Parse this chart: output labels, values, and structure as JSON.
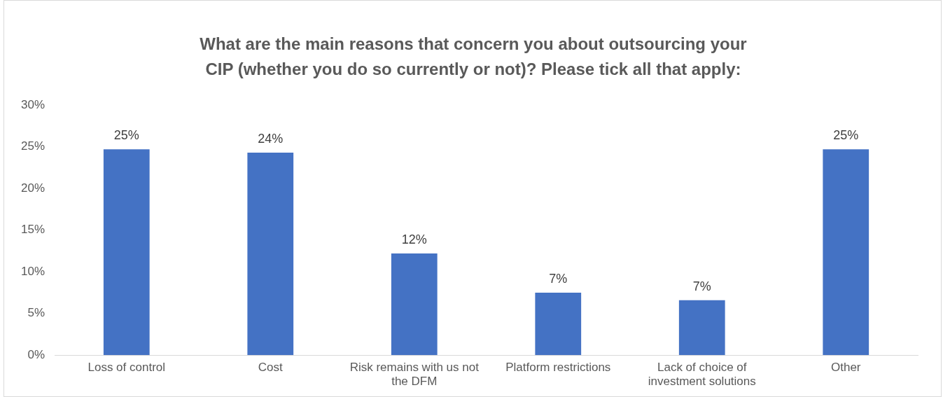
{
  "chart_data": {
    "type": "bar",
    "title": "What are the main reasons that concern you about outsourcing your CIP (whether you do so currently or not)? Please tick all that apply:",
    "categories": [
      "Loss of control",
      "Cost",
      "Risk remains with us not the DFM",
      "Platform restrictions",
      "Lack of choice of investment solutions",
      "Other"
    ],
    "values": [
      24.7,
      24.3,
      12.2,
      7.5,
      6.6,
      24.7
    ],
    "value_labels": [
      "25%",
      "24%",
      "12%",
      "7%",
      "7%",
      "25%"
    ],
    "color": "#4472c4",
    "ylim": [
      0,
      30
    ],
    "yticks": [
      {
        "value": 0,
        "label": "0%"
      },
      {
        "value": 5,
        "label": "5%"
      },
      {
        "value": 10,
        "label": "10%"
      },
      {
        "value": 15,
        "label": "15%"
      },
      {
        "value": 20,
        "label": "20%"
      },
      {
        "value": 25,
        "label": "25%"
      },
      {
        "value": 30,
        "label": "30%"
      }
    ],
    "grid": false,
    "legend": false
  }
}
